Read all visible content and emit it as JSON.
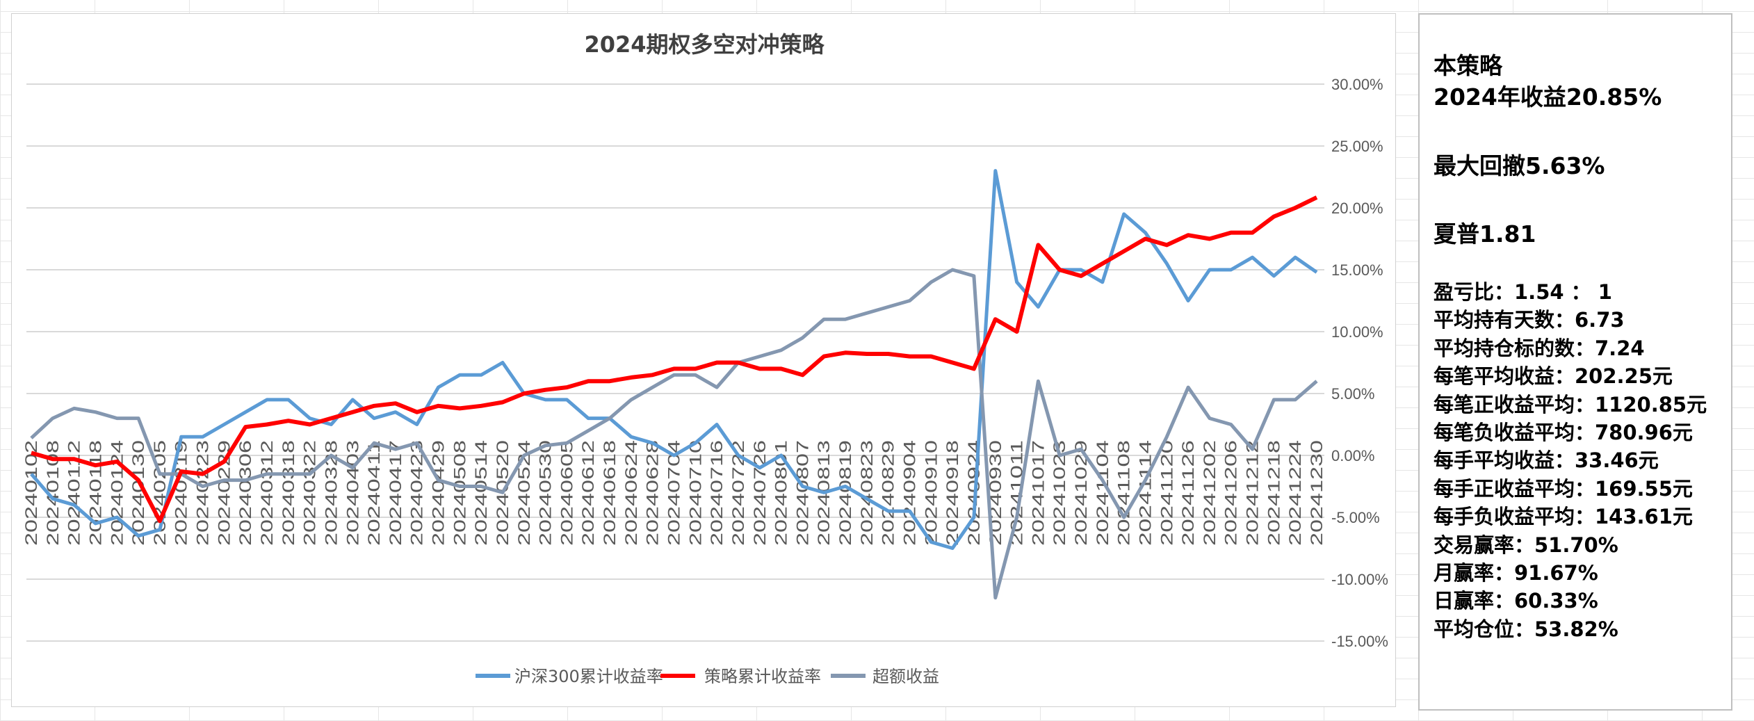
{
  "chart_data": {
    "type": "line",
    "title": "2024期权多空对冲策略",
    "xlabel": "",
    "ylabel": "",
    "ylim": [
      -0.15,
      0.3
    ],
    "yticks": [
      -0.15,
      -0.1,
      -0.05,
      0,
      0.05,
      0.1,
      0.15,
      0.2,
      0.25,
      0.3
    ],
    "ytick_labels": [
      "-15.00%",
      "-10.00%",
      "-5.00%",
      "0.00%",
      "5.00%",
      "10.00%",
      "15.00%",
      "20.00%",
      "25.00%",
      "30.00%"
    ],
    "grid": true,
    "legend": "bottom",
    "x": [
      "20240102",
      "20240108",
      "20240112",
      "20240118",
      "20240124",
      "20240130",
      "20240205",
      "20240219",
      "20240223",
      "20240229",
      "20240306",
      "20240312",
      "20240318",
      "20240322",
      "20240328",
      "20240403",
      "20240411",
      "20240417",
      "20240423",
      "20240429",
      "20240508",
      "20240514",
      "20240520",
      "20240524",
      "20240530",
      "20240605",
      "20240612",
      "20240618",
      "20240624",
      "20240628",
      "20240704",
      "20240710",
      "20240716",
      "20240722",
      "20240726",
      "20240801",
      "20240807",
      "20240813",
      "20240819",
      "20240823",
      "20240829",
      "20240904",
      "20240910",
      "20240918",
      "20240924",
      "20240930",
      "20241011",
      "20241017",
      "20241023",
      "20241029",
      "20241104",
      "20241108",
      "20241114",
      "20241120",
      "20241126",
      "20241202",
      "20241206",
      "20241212",
      "20241218",
      "20241224",
      "20241230"
    ],
    "series": [
      {
        "name": "沪深300累计收益率",
        "color": "#5b9bd5",
        "values": [
          -1.5,
          -3.5,
          -4,
          -5.5,
          -5,
          -6.5,
          -6,
          1.5,
          1.5,
          2.5,
          3.5,
          4.5,
          4.5,
          3,
          2.5,
          4.5,
          3,
          3.5,
          2.5,
          5.5,
          6.5,
          6.5,
          7.5,
          5,
          4.5,
          4.5,
          3,
          3,
          1.5,
          1,
          0,
          1,
          2.5,
          0,
          -1,
          0,
          -2.5,
          -3,
          -2.5,
          -3.5,
          -4.5,
          -4.5,
          -7,
          -7.5,
          -5,
          23,
          14,
          12,
          15,
          15,
          14,
          19.5,
          18,
          15.5,
          12.5,
          15,
          15,
          16,
          14.5,
          16,
          14.8
        ]
      },
      {
        "name": "策略累计收益率",
        "color": "#ff0000",
        "values": [
          0.2,
          -0.3,
          -0.3,
          -0.8,
          -0.5,
          -2,
          -5.3,
          -1.3,
          -1.5,
          -0.5,
          2.3,
          2.5,
          2.8,
          2.5,
          3,
          3.5,
          4,
          4.2,
          3.5,
          4,
          3.8,
          4,
          4.3,
          5,
          5.3,
          5.5,
          6,
          6,
          6.3,
          6.5,
          7,
          7,
          7.5,
          7.5,
          7,
          7,
          6.5,
          8,
          8.3,
          8.2,
          8.2,
          8,
          8,
          7.5,
          7,
          11,
          10,
          17,
          15,
          14.5,
          15.5,
          16.5,
          17.5,
          17,
          17.8,
          17.5,
          18,
          18,
          19.3,
          20,
          20.85
        ]
      },
      {
        "name": "超额收益",
        "color": "#8497b0",
        "values": [
          1.4,
          3,
          3.8,
          3.5,
          3,
          3,
          -1.5,
          -1.5,
          -2.5,
          -2,
          -2,
          -1.5,
          -1.5,
          -1.5,
          0,
          -1,
          1,
          0.5,
          1,
          -2,
          -2.5,
          -2.5,
          -3,
          0,
          0.8,
          1,
          2,
          3,
          4.5,
          5.5,
          6.5,
          6.5,
          5.5,
          7.5,
          8,
          8.5,
          9.5,
          11,
          11,
          11.5,
          12,
          12.5,
          14,
          15,
          14.5,
          -11.5,
          -5,
          6,
          0,
          0.5,
          -2,
          -5,
          -2,
          1.5,
          5.5,
          3,
          2.5,
          0.5,
          4.5,
          4.5,
          6
        ]
      }
    ],
    "value_unit": "percent"
  },
  "stats": {
    "title": "本策略",
    "annual_return": "2024年收益20.85%",
    "max_drawdown": "最大回撤5.63%",
    "sharpe": "夏普1.81",
    "items": [
      "盈亏比：1.54 ： 1",
      "平均持有天数：6.73",
      "平均持仓标的数：7.24",
      "每笔平均收益：202.25元",
      "每笔正收益平均：1120.85元",
      "每笔负收益平均：780.96元",
      "每手平均收益：33.46元",
      "每手正收益平均：169.55元",
      "每手负收益平均：143.61元",
      "交易赢率：51.70%",
      "月赢率：91.67%",
      "日赢率：60.33%",
      "平均仓位：53.82%"
    ]
  }
}
